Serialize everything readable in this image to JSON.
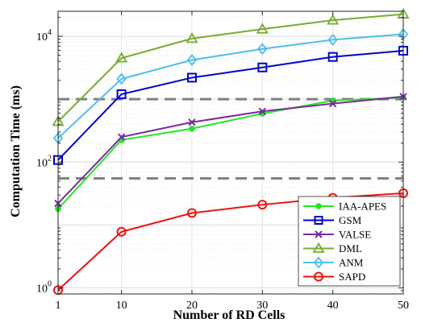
{
  "chart_data": {
    "type": "line",
    "xlabel": "Number of RD Cells",
    "ylabel": "Computation Time (ms)",
    "x": [
      1,
      10,
      20,
      30,
      40,
      50
    ],
    "xlim": [
      1,
      50
    ],
    "xticks": [
      1,
      10,
      20,
      30,
      40,
      50
    ],
    "y_scale": "log",
    "ylim": [
      0.8,
      25000
    ],
    "yticks": [
      {
        "value": 1,
        "base": "10",
        "exp": "0"
      },
      {
        "value": 100,
        "base": "10",
        "exp": "2"
      },
      {
        "value": 10000,
        "base": "10",
        "exp": "4"
      }
    ],
    "grid": true,
    "legend_position": "lower-right",
    "reference_lines": [
      {
        "y": 1000,
        "style": "dashed",
        "color": "#808080"
      },
      {
        "y": 55,
        "style": "dashed",
        "color": "#808080"
      }
    ],
    "series": [
      {
        "name": "IAA-APES",
        "color": "#22e822",
        "marker": "dot",
        "values": [
          18,
          225,
          340,
          590,
          950,
          1060
        ]
      },
      {
        "name": "GSM",
        "color": "#0000d0",
        "marker": "square",
        "values": [
          108,
          1200,
          2200,
          3200,
          4700,
          5900
        ]
      },
      {
        "name": "VALSE",
        "color": "#7b2a9e",
        "marker": "x",
        "values": [
          22,
          250,
          430,
          640,
          850,
          1100
        ]
      },
      {
        "name": "DML",
        "color": "#77ac30",
        "marker": "triangle",
        "values": [
          440,
          4500,
          9200,
          13000,
          18000,
          22500
        ]
      },
      {
        "name": "ANM",
        "color": "#4dbeee",
        "marker": "diamond",
        "values": [
          240,
          2100,
          4200,
          6300,
          8800,
          10800
        ]
      },
      {
        "name": "SAPD",
        "color": "#ee1111",
        "marker": "circle",
        "values": [
          0.92,
          7.8,
          15.5,
          21,
          27,
          32
        ]
      }
    ]
  }
}
